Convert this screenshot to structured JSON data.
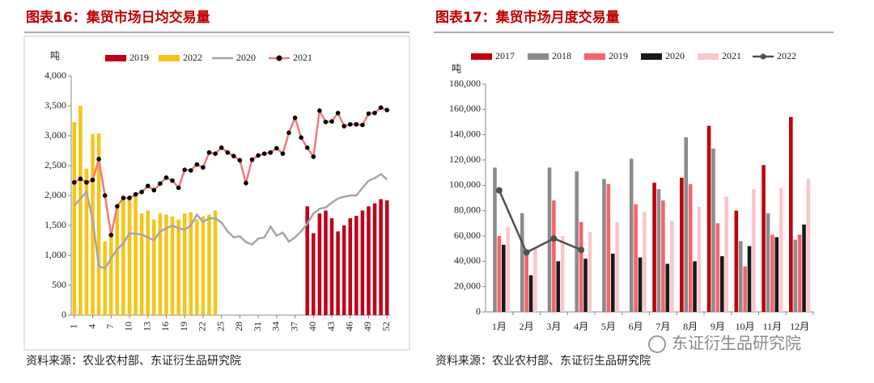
{
  "chart_data": [
    {
      "type": "combo",
      "title": "图表16：集贸市场日均交易量",
      "ylabel": "吨",
      "source": "资料来源：农业农村部、东证衍生品研究院",
      "x": [
        1,
        2,
        3,
        4,
        5,
        6,
        7,
        8,
        9,
        10,
        11,
        12,
        13,
        14,
        15,
        16,
        17,
        18,
        19,
        20,
        21,
        22,
        23,
        24,
        25,
        26,
        27,
        28,
        29,
        30,
        31,
        32,
        33,
        34,
        35,
        36,
        37,
        38,
        39,
        40,
        41,
        42,
        43,
        44,
        45,
        46,
        47,
        48,
        49,
        50,
        51,
        52
      ],
      "xlim": [
        0.5,
        52.5
      ],
      "xticks": [
        1,
        4,
        7,
        10,
        13,
        16,
        19,
        22,
        25,
        28,
        31,
        34,
        37,
        40,
        43,
        46,
        49,
        52
      ],
      "ylim": [
        0,
        4000
      ],
      "yticks": [
        0,
        500,
        {
          "value": 1000,
          "label": "1,000"
        },
        {
          "value": 1500,
          "label": "1,500"
        },
        {
          "value": 2000,
          "label": "2,000"
        },
        {
          "value": 2500,
          "label": "2,500"
        },
        {
          "value": 3000,
          "label": "3,000"
        },
        {
          "value": 3500,
          "label": "3,500"
        },
        {
          "value": 4000,
          "label": "4,000"
        }
      ],
      "series": [
        {
          "name": "2019",
          "type": "bar",
          "color": "#c0001a",
          "values": [
            null,
            null,
            null,
            null,
            null,
            null,
            null,
            null,
            null,
            null,
            null,
            null,
            null,
            null,
            null,
            null,
            null,
            null,
            null,
            null,
            null,
            null,
            null,
            null,
            null,
            null,
            null,
            null,
            null,
            null,
            null,
            null,
            null,
            null,
            null,
            null,
            null,
            null,
            1820,
            1370,
            1700,
            1750,
            1620,
            1400,
            1500,
            1620,
            1660,
            1750,
            1820,
            1870,
            1940,
            1920
          ]
        },
        {
          "name": "2022",
          "type": "bar",
          "color": "#f5c518",
          "values": [
            3230,
            3500,
            2450,
            3030,
            3040,
            1230,
            1350,
            1800,
            1950,
            1950,
            2050,
            1700,
            1750,
            1600,
            1700,
            1680,
            1650,
            1600,
            1700,
            1720,
            1600,
            1650,
            1680,
            1750,
            null,
            null,
            null,
            null,
            null,
            null,
            null,
            null,
            null,
            null,
            null,
            null,
            null,
            null,
            null,
            null,
            null,
            null,
            null,
            null,
            null,
            null,
            null,
            null,
            null,
            null,
            null,
            null
          ]
        },
        {
          "name": "2020",
          "type": "line",
          "color": "#a6a6a6",
          "values": [
            1830,
            1950,
            2060,
            1600,
            820,
            780,
            950,
            1100,
            1200,
            1370,
            1360,
            1350,
            1300,
            1250,
            1400,
            1450,
            1500,
            1450,
            1430,
            1500,
            1680,
            1560,
            1620,
            1620,
            1550,
            1400,
            1300,
            1320,
            1220,
            1180,
            1280,
            1300,
            1480,
            1330,
            1380,
            1230,
            1300,
            1400,
            1530,
            1700,
            1780,
            1800,
            1880,
            1950,
            1980,
            2000,
            2000,
            2130,
            2250,
            2290,
            2360,
            2270
          ]
        },
        {
          "name": "2021",
          "type": "line",
          "color": "#f4797a",
          "marker_color": "#000000",
          "values": [
            2220,
            2280,
            2220,
            2260,
            2610,
            2000,
            1340,
            1820,
            1960,
            1960,
            2020,
            2060,
            2160,
            2090,
            2200,
            2300,
            2250,
            2130,
            2430,
            2420,
            2520,
            2470,
            2720,
            2700,
            2800,
            2720,
            2660,
            2590,
            2210,
            2600,
            2670,
            2700,
            2720,
            2790,
            2700,
            3050,
            3300,
            2970,
            2800,
            2650,
            3420,
            3230,
            3240,
            3380,
            3160,
            3190,
            3190,
            3180,
            3370,
            3380,
            3470,
            3430
          ]
        }
      ]
    },
    {
      "type": "combo",
      "title": "图表17：集贸市场月度交易量",
      "ylabel": "吨",
      "source": "资料来源：农业农村部、东证衍生品研究院",
      "categories": [
        "1月",
        "2月",
        "3月",
        "4月",
        "5月",
        "6月",
        "7月",
        "8月",
        "9月",
        "10月",
        "11月",
        "12月"
      ],
      "ylim": [
        0,
        180000
      ],
      "yticks": [
        0,
        {
          "value": 20000,
          "label": "20,000"
        },
        {
          "value": 40000,
          "label": "40,000"
        },
        {
          "value": 60000,
          "label": "60,000"
        },
        {
          "value": 80000,
          "label": "80,000"
        },
        {
          "value": 100000,
          "label": "100,000"
        },
        {
          "value": 120000,
          "label": "120,000"
        },
        {
          "value": 140000,
          "label": "140,000"
        },
        {
          "value": 160000,
          "label": "160,000"
        },
        {
          "value": 180000,
          "label": "180,000"
        }
      ],
      "series": [
        {
          "name": "2017",
          "type": "bar",
          "color": "#c0000c",
          "values": [
            null,
            null,
            null,
            null,
            null,
            null,
            102000,
            106000,
            147000,
            80000,
            116000,
            154000
          ]
        },
        {
          "name": "2018",
          "type": "bar",
          "color": "#8c8c8c",
          "values": [
            114000,
            78000,
            114000,
            111000,
            105000,
            121000,
            97000,
            138000,
            129000,
            56000,
            78000,
            57000
          ]
        },
        {
          "name": "2019",
          "type": "bar",
          "color": "#f4646b",
          "values": [
            60000,
            46000,
            88000,
            71000,
            101000,
            85000,
            88000,
            101000,
            70000,
            36000,
            61000,
            61000
          ]
        },
        {
          "name": "2020",
          "type": "bar",
          "color": "#1a1a1a",
          "values": [
            53000,
            29000,
            40000,
            42000,
            46000,
            43000,
            38000,
            40000,
            44000,
            52000,
            59000,
            69000
          ]
        },
        {
          "name": "2021",
          "type": "bar",
          "color": "#f9c6cc",
          "values": [
            67000,
            50000,
            60000,
            63000,
            71000,
            79000,
            72000,
            83000,
            91000,
            97000,
            98000,
            105000
          ]
        },
        {
          "name": "2022",
          "type": "line",
          "color": "#505050",
          "marker_color": "#505050",
          "values": [
            96000,
            47000,
            58000,
            49000,
            null,
            null,
            null,
            null,
            null,
            null,
            null,
            null
          ]
        }
      ]
    }
  ],
  "watermark": "东证衍生品研究院"
}
